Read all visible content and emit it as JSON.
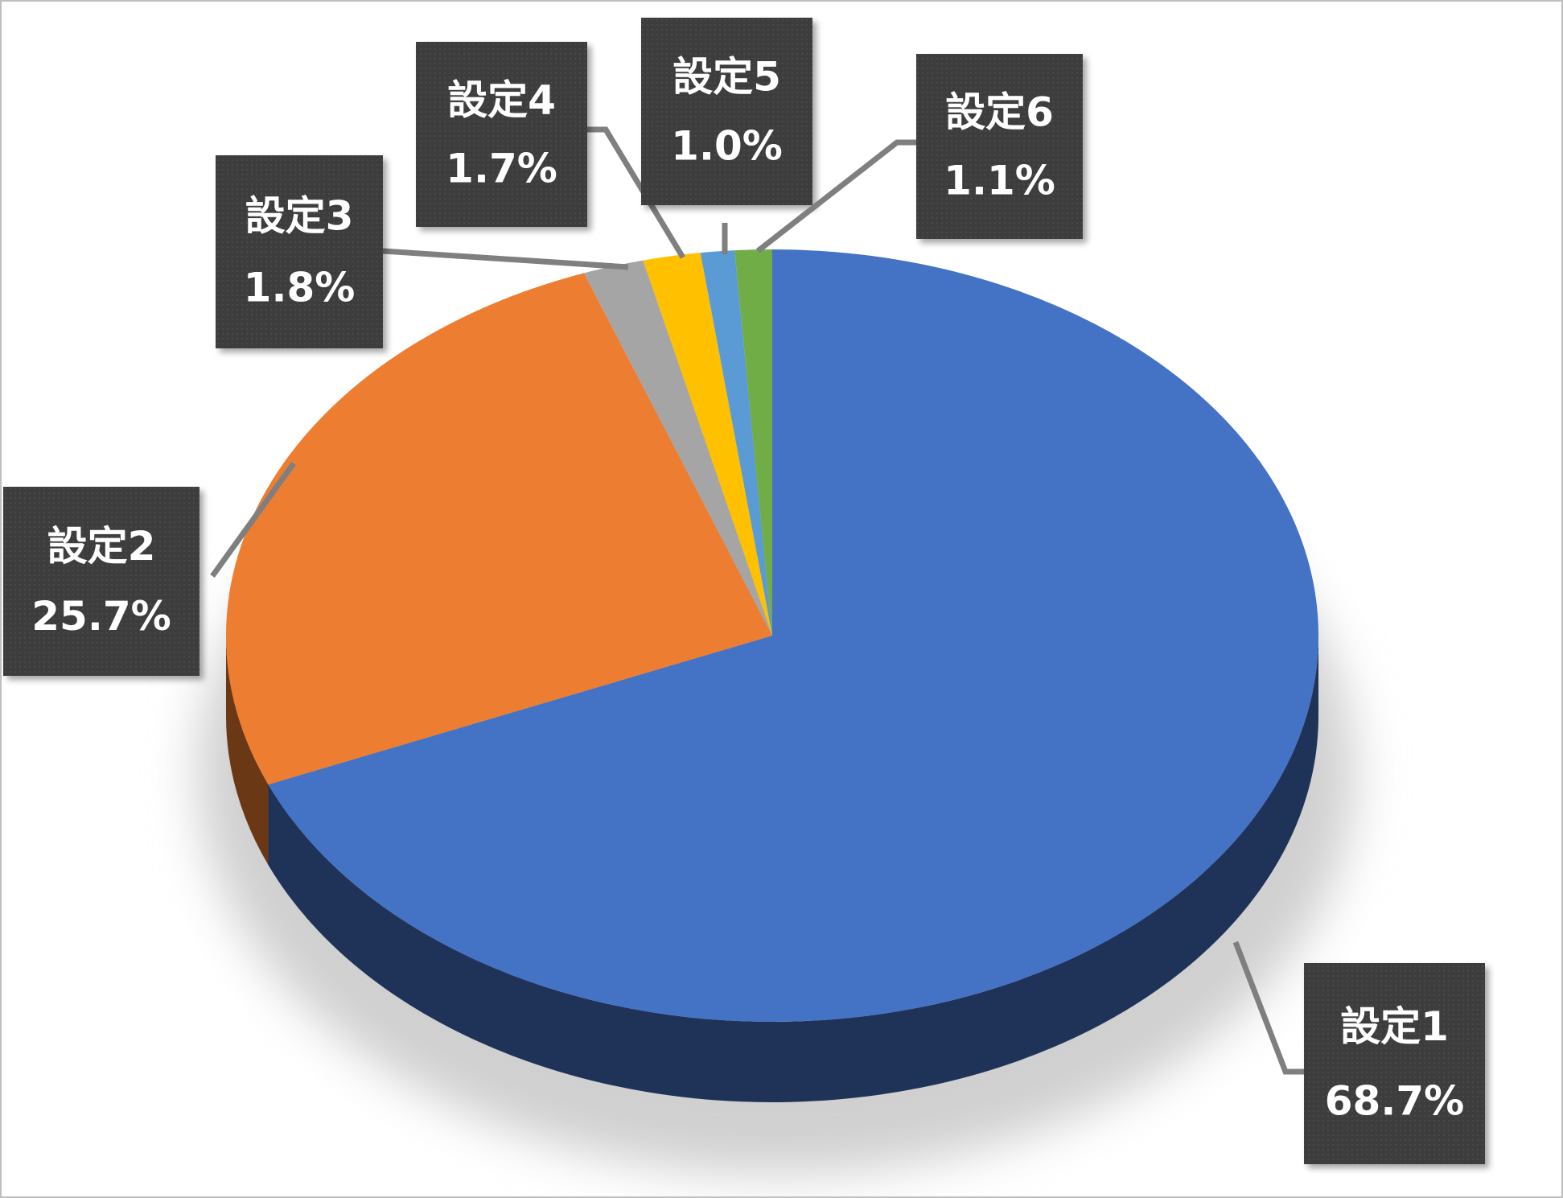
{
  "chart_data": {
    "type": "pie",
    "categories": [
      "設定1",
      "設定2",
      "設定3",
      "設定4",
      "設定5",
      "設定6"
    ],
    "values": [
      68.7,
      25.7,
      1.8,
      1.7,
      1.0,
      1.1
    ],
    "value_labels": [
      "68.7%",
      "25.7%",
      "1.8%",
      "1.7%",
      "1.0%",
      "1.1%"
    ],
    "colors": [
      "#4472c4",
      "#ed7d31",
      "#a5a5a5",
      "#ffc000",
      "#5b9bd5",
      "#70ad47"
    ]
  }
}
